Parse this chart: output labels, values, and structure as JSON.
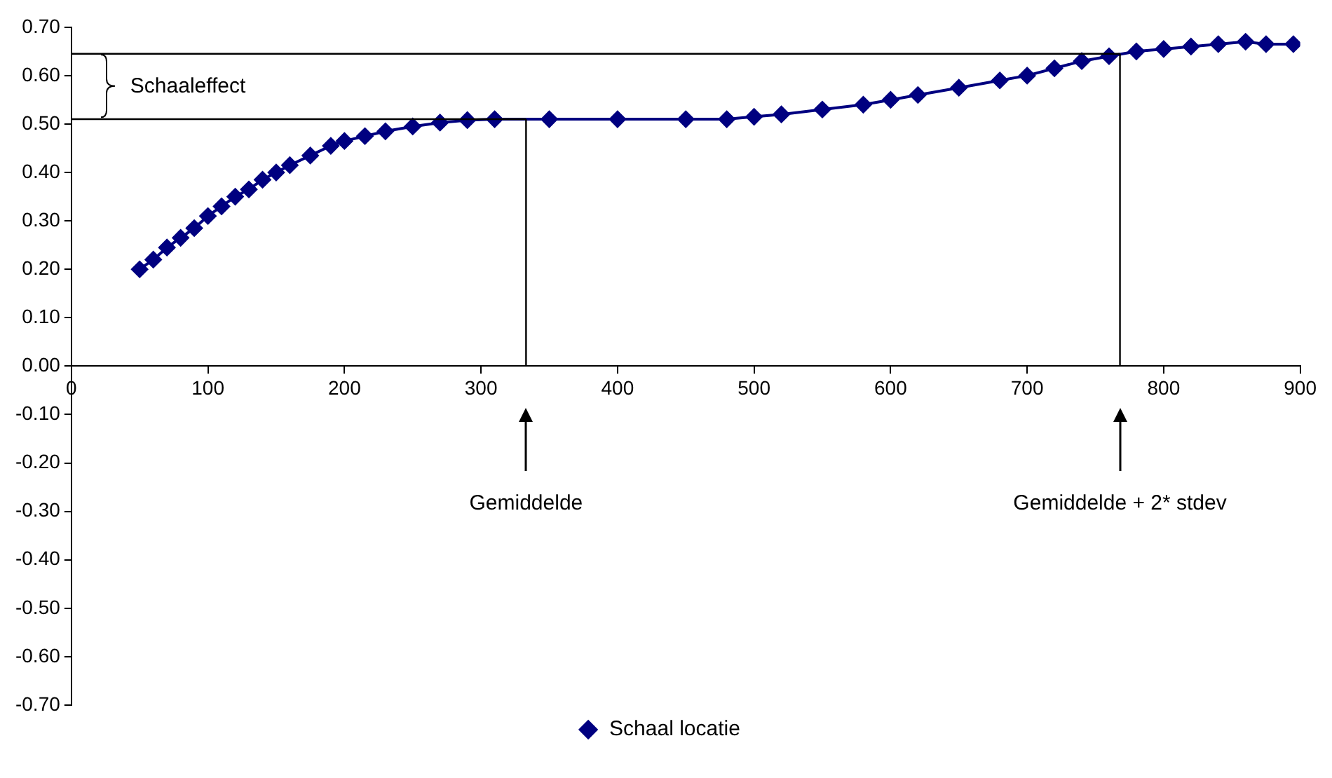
{
  "chart_data": {
    "type": "line",
    "x": [
      50,
      60,
      70,
      80,
      90,
      100,
      110,
      120,
      130,
      140,
      150,
      160,
      175,
      190,
      200,
      215,
      230,
      250,
      270,
      290,
      310,
      350,
      400,
      450,
      480,
      500,
      520,
      550,
      580,
      600,
      620,
      650,
      680,
      700,
      720,
      740,
      760,
      780,
      800,
      820,
      840,
      860,
      875,
      895
    ],
    "series": [
      {
        "name": "Schaal locatie",
        "color": "#000080",
        "values": [
          0.2,
          0.22,
          0.245,
          0.265,
          0.285,
          0.31,
          0.33,
          0.35,
          0.365,
          0.385,
          0.4,
          0.415,
          0.435,
          0.455,
          0.465,
          0.475,
          0.485,
          0.495,
          0.503,
          0.508,
          0.51,
          0.51,
          0.51,
          0.51,
          0.51,
          0.515,
          0.52,
          0.53,
          0.54,
          0.55,
          0.56,
          0.575,
          0.59,
          0.6,
          0.615,
          0.63,
          0.64,
          0.65,
          0.655,
          0.66,
          0.665,
          0.67,
          0.665,
          0.665
        ]
      }
    ],
    "xlim": [
      0,
      900
    ],
    "xticks": [
      0,
      100,
      200,
      300,
      400,
      500,
      600,
      700,
      800,
      900
    ],
    "ylim": [
      -0.7,
      0.7
    ],
    "yticks": [
      {
        "value": 0.7,
        "label": "0.70"
      },
      {
        "value": 0.6,
        "label": "0.60"
      },
      {
        "value": 0.5,
        "label": "0.50"
      },
      {
        "value": 0.4,
        "label": "0.40"
      },
      {
        "value": 0.3,
        "label": "0.30"
      },
      {
        "value": 0.2,
        "label": "0.20"
      },
      {
        "value": 0.1,
        "label": "0.10"
      },
      {
        "value": 0,
        "label": "0.00"
      },
      {
        "value": -0.1,
        "label": "-0.10"
      },
      {
        "value": -0.2,
        "label": "-0.20"
      },
      {
        "value": -0.3,
        "label": "-0.30"
      },
      {
        "value": -0.4,
        "label": "-0.40"
      },
      {
        "value": -0.5,
        "label": "-0.50"
      },
      {
        "value": -0.6,
        "label": "-0.60"
      },
      {
        "value": -0.7,
        "label": "-0.70"
      }
    ],
    "ref_lines": [
      {
        "axis": "x",
        "value": 333,
        "label": "Gemiddelde"
      },
      {
        "axis": "x",
        "value": 768,
        "label": "Gemiddelde + 2* stdev"
      },
      {
        "axis": "y",
        "value": 0.51
      },
      {
        "axis": "y",
        "value": 0.645
      }
    ],
    "annotations": [
      "Schaaleffect"
    ],
    "marker": "diamond",
    "legend": "bottom",
    "grid": false
  }
}
